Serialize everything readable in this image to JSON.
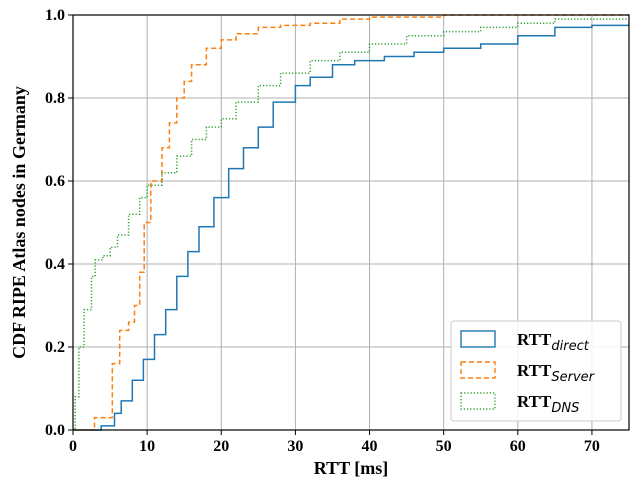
{
  "chart_data": {
    "type": "line",
    "subtype": "ecdf-step",
    "title": "",
    "xlabel": "RTT [ms]",
    "ylabel": "CDF RIPE Atlas nodes in Germany",
    "xlim": [
      0,
      75
    ],
    "ylim": [
      0.0,
      1.0
    ],
    "xticks": [
      0,
      10,
      20,
      30,
      40,
      50,
      60,
      70
    ],
    "yticks": [
      0.0,
      0.2,
      0.4,
      0.6,
      0.8,
      1.0
    ],
    "xtick_labels": [
      "0",
      "10",
      "20",
      "30",
      "40",
      "50",
      "60",
      "70"
    ],
    "ytick_labels": [
      "0.0",
      "0.2",
      "0.4",
      "0.6",
      "0.8",
      "1.0"
    ],
    "grid": true,
    "legend_position": "lower-right",
    "series": [
      {
        "name": "RTT_direct",
        "label_main": "RTT",
        "label_sub": "direct",
        "color": "#1f77b4",
        "dash": "solid",
        "x": [
          0,
          3.0,
          3.8,
          5.4,
          5.6,
          6.5,
          8.0,
          9.5,
          11.0,
          12.5,
          14.0,
          15.5,
          17.0,
          19.0,
          21.0,
          23.0,
          25.0,
          27.0,
          30.0,
          32.0,
          35.0,
          38.0,
          42.0,
          46.0,
          50.0,
          55.0,
          60.0,
          65.0,
          70.0,
          75.0
        ],
        "y": [
          0,
          0.0,
          0.01,
          0.01,
          0.04,
          0.07,
          0.12,
          0.17,
          0.23,
          0.29,
          0.37,
          0.43,
          0.49,
          0.56,
          0.63,
          0.68,
          0.73,
          0.79,
          0.83,
          0.85,
          0.88,
          0.89,
          0.9,
          0.91,
          0.92,
          0.93,
          0.95,
          0.97,
          0.975,
          0.98
        ]
      },
      {
        "name": "RTT_Server",
        "label_main": "RTT",
        "label_sub": "Server",
        "color": "#ff7f0e",
        "dash": "dashed",
        "x": [
          0,
          2.5,
          2.9,
          5.0,
          5.3,
          6.3,
          7.5,
          8.3,
          9.0,
          9.6,
          10.5,
          12.0,
          13.0,
          14.0,
          15.0,
          16.0,
          18.0,
          20.0,
          22.0,
          25.0,
          28.0,
          32.0,
          36.0,
          40.0,
          50.0,
          60.0,
          75.0
        ],
        "y": [
          0,
          0.0,
          0.03,
          0.03,
          0.16,
          0.24,
          0.26,
          0.3,
          0.38,
          0.5,
          0.6,
          0.68,
          0.74,
          0.8,
          0.84,
          0.88,
          0.92,
          0.94,
          0.955,
          0.97,
          0.975,
          0.98,
          0.99,
          0.995,
          1.0,
          1.0,
          1.0
        ]
      },
      {
        "name": "RTT_DNS",
        "label_main": "RTT",
        "label_sub": "DNS",
        "color": "#2ca02c",
        "dash": "dotted",
        "x": [
          0,
          0.3,
          0.8,
          1.5,
          2.5,
          3.0,
          4.0,
          5.0,
          6.0,
          7.5,
          9.0,
          10.0,
          12.0,
          14.0,
          16.0,
          18.0,
          20.0,
          22.0,
          25.0,
          28.0,
          32.0,
          36.0,
          40.0,
          45.0,
          50.0,
          55.0,
          60.0,
          65.0,
          70.0,
          75.0
        ],
        "y": [
          0,
          0.08,
          0.2,
          0.29,
          0.37,
          0.41,
          0.42,
          0.44,
          0.47,
          0.52,
          0.56,
          0.59,
          0.62,
          0.66,
          0.7,
          0.73,
          0.75,
          0.79,
          0.83,
          0.86,
          0.89,
          0.91,
          0.93,
          0.95,
          0.96,
          0.97,
          0.98,
          0.99,
          0.99,
          0.995
        ]
      }
    ]
  }
}
